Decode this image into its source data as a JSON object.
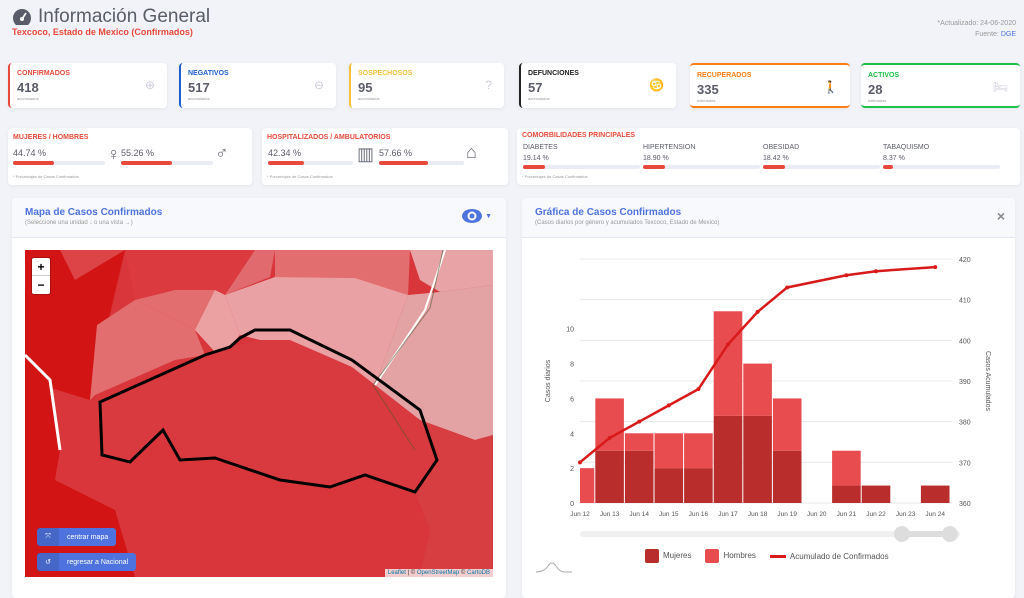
{
  "header": {
    "title": "Información General",
    "subtitle": "Texcoco, Estado de Mexico (Confirmados)",
    "updated": "*Actualizado: 24-06-2020",
    "source_label": "Fuente:",
    "source_link": "DGE"
  },
  "stats": [
    {
      "label": "CONFIRMADOS",
      "value": "418",
      "sub": "acumulados",
      "color": "#e74a3b",
      "icon": "plus-circle-icon"
    },
    {
      "label": "NEGATIVOS",
      "value": "517",
      "sub": "acumulados",
      "color": "#1d5fd1",
      "icon": "minus-circle-icon"
    },
    {
      "label": "SOSPECHOSOS",
      "value": "95",
      "sub": "acumulados",
      "color": "#f6c23e",
      "icon": "question-circle-icon"
    },
    {
      "label": "DEFUNCIONES",
      "value": "57",
      "sub": "acumulados",
      "color": "#222222",
      "icon": "ribbon-icon"
    },
    {
      "label": "RECUPERADOS",
      "value": "335",
      "sub": "estimados",
      "color": "#fd7e14",
      "icon": "walking-icon"
    },
    {
      "label": "ACTIVOS",
      "value": "28",
      "sub": "estimados",
      "color": "#1cc14a",
      "icon": "bed-icon"
    }
  ],
  "gender": {
    "label": "MUJERES / HOMBRES",
    "women_pct": "44.74 %",
    "women": 44.74,
    "men_pct": "55.26 %",
    "men": 55.26,
    "note": "* Porcentajes de Casos Confirmados"
  },
  "hosp": {
    "label": "HOSPITALIZADOS / AMBULATORIOS",
    "hosp_pct": "42.34 %",
    "hosp": 42.34,
    "amb_pct": "57.66 %",
    "amb": 57.66,
    "note": "* Porcentajes de Casos Confirmados"
  },
  "comorb": {
    "label": "COMORBILIDADES PRINCIPALES",
    "note": "* Porcentajes de Casos Confirmados",
    "items": [
      {
        "name": "DIABETES",
        "pct": "19.14 %",
        "value": 19.14
      },
      {
        "name": "HIPERTENSION",
        "pct": "18.90 %",
        "value": 18.9
      },
      {
        "name": "OBESIDAD",
        "pct": "18.42 %",
        "value": 18.42
      },
      {
        "name": "TABAQUISMO",
        "pct": "8.37 %",
        "value": 8.37
      }
    ]
  },
  "map": {
    "title": "Mapa de Casos Confirmados",
    "subtitle": "(Seleccione una unidad ↓ o una vista →)",
    "zoom_in": "+",
    "zoom_out": "−",
    "center_btn": "centrar mapa",
    "national_btn": "regresar a Nacional",
    "attr_leaflet": "Leaflet",
    "attr_sep": " | © ",
    "attr_osm": "OpenStreetMap",
    "attr_sep2": " © ",
    "attr_carto": "CartoDB"
  },
  "chart_panel": {
    "title": "Gráfica de Casos Confirmados",
    "subtitle": "(Casos diarios por género y acumulados Texcoco, Estado de Mexico)",
    "close": "×"
  },
  "chart_data": {
    "type": "bar",
    "categories": [
      "Jun 12",
      "Jun 13",
      "Jun 14",
      "Jun 15",
      "Jun 16",
      "Jun 17",
      "Jun 18",
      "Jun 19",
      "Jun 20",
      "Jun 21",
      "Jun 22",
      "Jun 23",
      "Jun 24"
    ],
    "series": [
      {
        "name": "Mujeres",
        "type": "stacked-bar",
        "color": "#b92d2d",
        "values": [
          0,
          3,
          3,
          2,
          2,
          5,
          5,
          3,
          0,
          1,
          1,
          0,
          1
        ]
      },
      {
        "name": "Hombres",
        "type": "stacked-bar",
        "color": "#e84c4f",
        "values": [
          2,
          3,
          1,
          2,
          2,
          6,
          3,
          3,
          0,
          2,
          0,
          0,
          0
        ]
      },
      {
        "name": "Acumulado de Confirmados",
        "type": "line",
        "axis": "right",
        "color": "#d91a1a",
        "values": [
          370,
          376,
          380,
          384,
          388,
          399,
          407,
          413,
          null,
          416,
          417,
          null,
          418
        ]
      }
    ],
    "ylabel": "Casos diarios",
    "y2label": "Casos Acumulados",
    "ylim": [
      0,
      14
    ],
    "yticks": [
      0,
      2,
      4,
      6,
      8,
      10
    ],
    "y2lim": [
      360,
      420
    ],
    "y2ticks": [
      360,
      370,
      380,
      390,
      400,
      410,
      420
    ]
  }
}
